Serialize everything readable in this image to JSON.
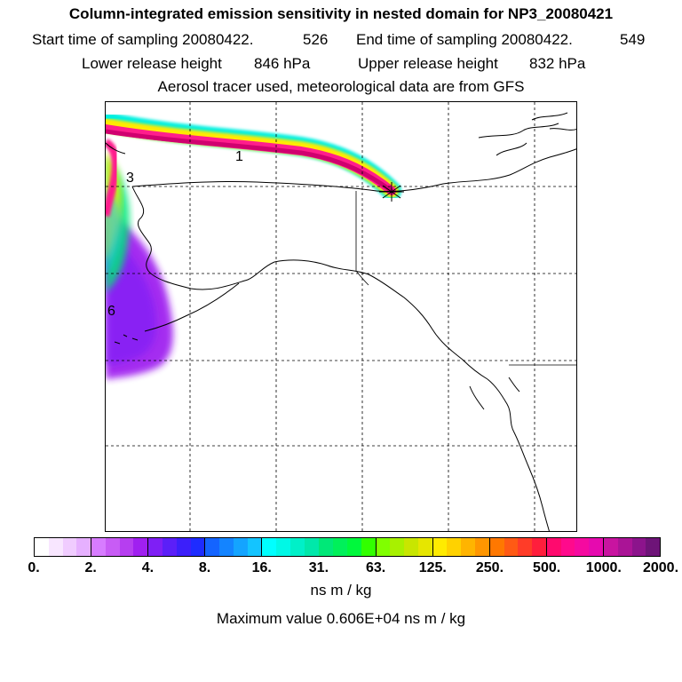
{
  "header": {
    "title": "Column-integrated emission sensitivity in nested domain for NP3_20080421",
    "start_label": "Start time of sampling 20080422.",
    "start_value": "526",
    "end_label": "End time of sampling 20080422.",
    "end_value": "549",
    "lower_label": "Lower release height",
    "lower_value": "846 hPa",
    "upper_label": "Upper release height",
    "upper_value": "832 hPa",
    "tracer_note": "Aerosol tracer used, meteorological data are from GFS"
  },
  "map": {
    "plume_labels": [
      "1",
      "3",
      "6"
    ],
    "release_marker": "release-point",
    "colors": {
      "coast": "#000000",
      "grid": "#000000",
      "plume_core": "#d0006f",
      "plume_mid": "#ff1e8c",
      "plume_outer": "#00f0e0"
    }
  },
  "colorbar": {
    "tick_labels": [
      "0.",
      "2.",
      "4.",
      "8.",
      "16.",
      "31.",
      "63.",
      "125.",
      "250.",
      "500.",
      "1000.",
      "2000."
    ],
    "groups": [
      [
        "#ffffff",
        "#f8e6ff",
        "#f0ccff",
        "#e6b0ff"
      ],
      [
        "#d77cff",
        "#c85cf5",
        "#b63ef0",
        "#a020f0"
      ],
      [
        "#7f1ff5",
        "#5b1ff8",
        "#3c1ffa",
        "#1e2cff"
      ],
      [
        "#1464ff",
        "#1484ff",
        "#14a4ff",
        "#14c4ff"
      ],
      [
        "#00ffff",
        "#00f8e6",
        "#00f0c8",
        "#00e8aa"
      ],
      [
        "#00e878",
        "#00f05a",
        "#00f83c",
        "#32ff00"
      ],
      [
        "#80ff00",
        "#a8f000",
        "#c8e600",
        "#e6e600"
      ],
      [
        "#ffeb00",
        "#ffd200",
        "#ffb400",
        "#ff9600"
      ],
      [
        "#ff7800",
        "#ff5a14",
        "#ff3c28",
        "#ff1e3c"
      ],
      [
        "#ff0a6e",
        "#ff0a8c",
        "#f50aa0",
        "#e60aaf"
      ],
      [
        "#c814a0",
        "#aa1496",
        "#8c148c",
        "#6e1478"
      ]
    ],
    "units": "ns m / kg",
    "max_label": "Maximum value",
    "max_value": "0.606E+04 ns m / kg"
  }
}
